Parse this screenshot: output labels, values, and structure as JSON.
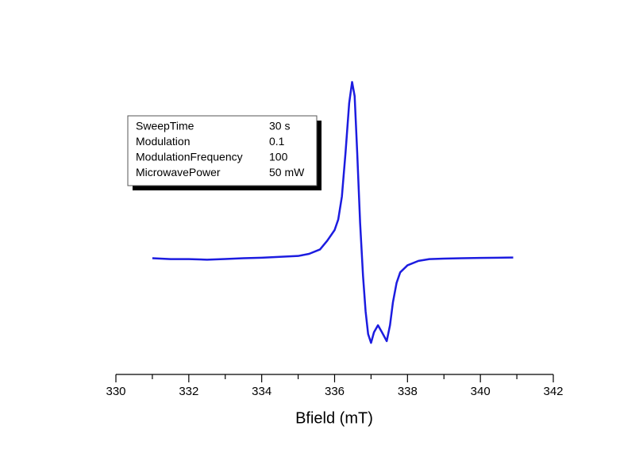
{
  "chart_data": {
    "type": "line",
    "x_label": "Bfield (mT)",
    "xlim": [
      330,
      342
    ],
    "xticks": [
      330,
      332,
      334,
      336,
      338,
      340,
      342
    ],
    "xminor_ticks": [
      331,
      333,
      335,
      337,
      339,
      341
    ],
    "ylim": [
      -0.65,
      1.15
    ],
    "x": [
      331.0,
      331.5,
      332.0,
      332.5,
      333.0,
      333.5,
      334.0,
      334.5,
      335.0,
      335.3,
      335.6,
      335.8,
      336.0,
      336.1,
      336.2,
      336.3,
      336.4,
      336.48,
      336.55,
      336.62,
      336.7,
      336.78,
      336.85,
      336.92,
      337.0,
      337.08,
      337.19,
      337.3,
      337.43,
      337.52,
      337.6,
      337.7,
      337.8,
      338.0,
      338.3,
      338.6,
      339.0,
      339.5,
      340.0,
      340.5,
      340.9
    ],
    "series": [
      {
        "color": "#1c1ce0",
        "values": [
          0.0,
          -0.005,
          -0.005,
          -0.008,
          -0.004,
          0.0,
          0.003,
          0.008,
          0.013,
          0.025,
          0.05,
          0.1,
          0.16,
          0.22,
          0.35,
          0.6,
          0.88,
          1.0,
          0.92,
          0.6,
          0.2,
          -0.1,
          -0.3,
          -0.43,
          -0.48,
          -0.42,
          -0.38,
          -0.42,
          -0.47,
          -0.38,
          -0.25,
          -0.14,
          -0.08,
          -0.04,
          -0.015,
          -0.005,
          -0.002,
          0.0,
          0.002,
          0.003,
          0.004
        ]
      }
    ],
    "info_box": [
      [
        "SweepTime",
        "30 s"
      ],
      [
        "Modulation",
        "0.1"
      ],
      [
        "ModulationFrequency",
        "100"
      ],
      [
        "MicrowavePower",
        "50 mW"
      ]
    ]
  }
}
